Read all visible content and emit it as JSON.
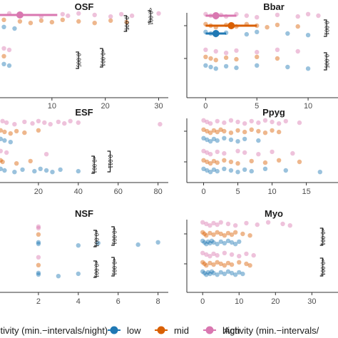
{
  "chart_data": [
    {
      "type": "scatter",
      "title": "OSF",
      "xlabel": "",
      "xlim": [
        0,
        31
      ],
      "xticks": [
        10,
        20,
        30
      ],
      "series": [
        {
          "name": "low",
          "row": 0,
          "x": [
            1,
            3
          ]
        },
        {
          "name": "mid",
          "row": 0,
          "x": [
            1,
            4,
            6,
            8,
            10,
            12,
            15,
            18,
            21,
            24
          ]
        },
        {
          "name": "high",
          "row": 0,
          "x": [
            2,
            4,
            8,
            12,
            13,
            15,
            18,
            21,
            23,
            25,
            30
          ]
        },
        {
          "name": "low",
          "row": 1,
          "x": [
            1,
            2
          ]
        },
        {
          "name": "mid",
          "row": 1,
          "x": [
            1
          ]
        },
        {
          "name": "high",
          "row": 1,
          "x": [
            1,
            2
          ]
        }
      ],
      "summary": [
        {
          "row": 0,
          "group": "high",
          "mean": 4,
          "hi": 11
        }
      ],
      "brackets": [
        {
          "row": 0,
          "x": 28.5,
          "span": "high",
          "label": "<0.001"
        },
        {
          "row": 0,
          "x": 24,
          "span": "mid",
          "label": "0.005"
        },
        {
          "row": 1,
          "x": 19.5,
          "span": "all",
          "label": "<0.001"
        },
        {
          "row": 1,
          "x": 15,
          "span": "mid",
          "label": "0.005"
        }
      ]
    },
    {
      "type": "scatter",
      "title": "Bbar",
      "xlabel": "",
      "xlim": [
        -1,
        12.5
      ],
      "xticks": [
        0,
        5,
        10
      ],
      "series": [
        {
          "name": "low",
          "row": 0,
          "x": [
            0,
            0.5,
            1,
            2,
            4,
            5,
            8,
            10
          ]
        },
        {
          "name": "mid",
          "row": 0,
          "x": [
            0,
            0.5,
            1,
            2,
            3,
            4,
            5,
            6,
            7,
            9
          ]
        },
        {
          "name": "high",
          "row": 0,
          "x": [
            0,
            0.5,
            1,
            1.5,
            2,
            3,
            4,
            5,
            7,
            9,
            10,
            11
          ]
        },
        {
          "name": "low",
          "row": 1,
          "x": [
            0,
            0.5,
            1,
            2,
            3,
            5,
            8,
            10
          ]
        },
        {
          "name": "mid",
          "row": 1,
          "x": [
            0,
            0.5,
            1,
            2,
            3,
            5,
            7
          ]
        },
        {
          "name": "high",
          "row": 1,
          "x": [
            0,
            1,
            2,
            3,
            5,
            7,
            9
          ]
        }
      ],
      "summary": [
        {
          "row": 0,
          "group": "low",
          "mean": 1,
          "hi": 2
        },
        {
          "row": 0,
          "group": "mid",
          "mean": 2.5,
          "hi": 5
        },
        {
          "row": 0,
          "group": "high",
          "mean": 1,
          "hi": 3
        }
      ],
      "brackets": [
        {
          "row": 0,
          "x": 11.8,
          "span": "mid",
          "label": "0.001"
        },
        {
          "row": 1,
          "x": 11.8,
          "span": "mid",
          "label": "0.005"
        }
      ]
    },
    {
      "type": "scatter",
      "title": "ESF",
      "xlabel": "",
      "xlim": [
        0,
        83
      ],
      "xticks": [
        20,
        40,
        60,
        80
      ],
      "series": [
        {
          "name": "low",
          "row": 0,
          "x": [
            1,
            3,
            6
          ]
        },
        {
          "name": "mid",
          "row": 0,
          "x": [
            1,
            3,
            6,
            9,
            13,
            20
          ]
        },
        {
          "name": "high",
          "row": 0,
          "x": [
            2,
            4,
            8,
            13,
            17,
            20,
            23,
            26,
            30,
            33,
            36,
            40,
            81
          ]
        },
        {
          "name": "low",
          "row": 1,
          "x": [
            1,
            3,
            8,
            12,
            18,
            21,
            24,
            27,
            31,
            40
          ]
        },
        {
          "name": "mid",
          "row": 1,
          "x": [
            1,
            2,
            9,
            16
          ]
        },
        {
          "name": "high",
          "row": 1,
          "x": [
            1,
            4,
            24
          ]
        }
      ],
      "summary": [],
      "brackets": [
        {
          "row": 1,
          "x": 56,
          "span": "all",
          "label": "0.011"
        },
        {
          "row": 1,
          "x": 48,
          "span": "mid",
          "label": "<0.001"
        }
      ]
    },
    {
      "type": "scatter",
      "title": "Ppyg",
      "xlabel": "",
      "xlim": [
        -1.2,
        19
      ],
      "xticks": [
        0,
        5,
        10,
        15
      ],
      "series": [
        {
          "name": "low",
          "row": 0,
          "x": [
            0,
            0.5,
            1,
            1.5,
            2,
            3,
            4,
            5,
            6,
            8
          ]
        },
        {
          "name": "mid",
          "row": 0,
          "x": [
            0,
            0.5,
            1,
            1.5,
            2,
            2.5,
            3,
            4,
            5,
            6,
            7,
            8,
            9,
            10,
            11
          ]
        },
        {
          "name": "high",
          "row": 0,
          "x": [
            0,
            0.5,
            1,
            2,
            3,
            4,
            5,
            6,
            7,
            8,
            9,
            10,
            11,
            12,
            14
          ]
        },
        {
          "name": "low",
          "row": 1,
          "x": [
            0,
            0.5,
            1,
            1.5,
            2,
            3,
            4,
            5,
            6,
            7,
            9,
            12,
            17
          ]
        },
        {
          "name": "mid",
          "row": 1,
          "x": [
            0,
            0.5,
            1,
            1.5,
            2,
            3,
            4,
            5,
            7,
            9,
            11,
            14
          ]
        },
        {
          "name": "high",
          "row": 1,
          "x": [
            0,
            0.5,
            1,
            2,
            3,
            5,
            6,
            8,
            10,
            13
          ]
        }
      ],
      "summary": [],
      "brackets": []
    },
    {
      "type": "scatter",
      "title": "NSF",
      "xlabel": "ctivity (min.−intervals/night)",
      "xlim": [
        0,
        8.3
      ],
      "xticks": [
        2,
        4,
        6,
        8
      ],
      "series": [
        {
          "name": "low",
          "row": 0,
          "x": [
            2,
            2,
            4,
            5,
            7,
            8
          ]
        },
        {
          "name": "mid",
          "row": 0,
          "x": [
            2
          ]
        },
        {
          "name": "high",
          "row": 0,
          "x": [
            2,
            2
          ]
        },
        {
          "name": "low",
          "row": 1,
          "x": [
            2,
            2,
            3,
            4
          ]
        },
        {
          "name": "mid",
          "row": 1,
          "x": [
            2
          ]
        },
        {
          "name": "high",
          "row": 1,
          "x": [
            2
          ]
        }
      ],
      "summary": [],
      "brackets": [
        {
          "row": 0,
          "x": 5.8,
          "span": "all",
          "label": "<0.001"
        },
        {
          "row": 0,
          "x": 4.9,
          "span": "mid",
          "label": "<0.001"
        },
        {
          "row": 1,
          "x": 5.8,
          "span": "all",
          "label": "<0.001"
        },
        {
          "row": 1,
          "x": 4.9,
          "span": "mid",
          "label": "<0.001"
        }
      ]
    },
    {
      "type": "scatter",
      "title": "Myo",
      "xlabel": "Activity (min.−intervals/",
      "xlim": [
        -2,
        36
      ],
      "xticks": [
        0,
        10,
        20,
        30
      ],
      "series": [
        {
          "name": "low",
          "row": 0,
          "x": [
            0,
            0.5,
            1,
            1.5,
            2,
            2.5,
            3,
            4,
            5,
            6,
            7,
            8,
            9,
            10
          ]
        },
        {
          "name": "mid",
          "row": 0,
          "x": [
            0,
            0.5,
            1,
            2,
            3,
            4,
            5,
            6,
            7,
            8,
            9,
            11,
            13
          ]
        },
        {
          "name": "high",
          "row": 0,
          "x": [
            0,
            1,
            2,
            3,
            4,
            5,
            7,
            9,
            12,
            15,
            18,
            22,
            24
          ]
        },
        {
          "name": "low",
          "row": 1,
          "x": [
            0,
            0.5,
            1,
            1.5,
            2,
            2.5,
            3,
            4,
            5,
            6,
            7,
            8,
            9,
            10,
            11
          ]
        },
        {
          "name": "mid",
          "row": 1,
          "x": [
            0,
            0.5,
            1,
            2,
            3,
            4,
            5,
            6,
            7,
            8,
            10,
            12,
            13
          ]
        },
        {
          "name": "high",
          "row": 1,
          "x": [
            0,
            1,
            2,
            3,
            4,
            6,
            8,
            10,
            12,
            14
          ]
        }
      ],
      "summary": [],
      "brackets": [
        {
          "row": 0,
          "x": 33,
          "span": "mid",
          "label": "<0.001"
        },
        {
          "row": 1,
          "x": 33,
          "span": "mid",
          "label": "<0.001"
        }
      ]
    }
  ],
  "legend": {
    "items": [
      {
        "label": "low",
        "color": "#1f78b4"
      },
      {
        "label": "mid",
        "color": "#d95f02"
      },
      {
        "label": "high",
        "color": "#d977b0"
      }
    ]
  }
}
